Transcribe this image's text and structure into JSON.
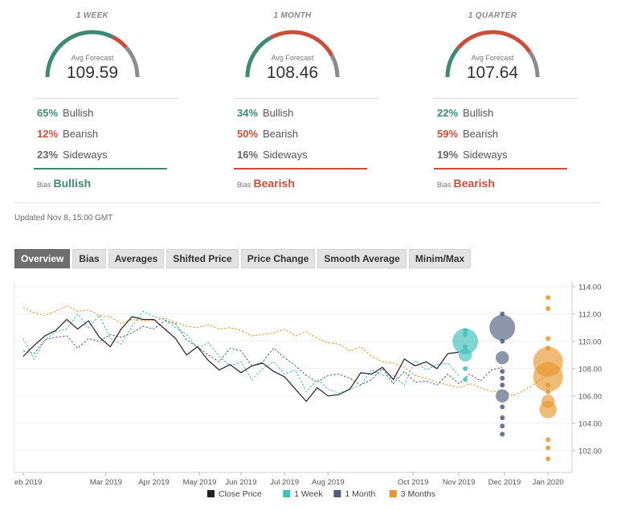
{
  "forecasts": [
    {
      "period": "1 WEEK",
      "avg_label": "Avg Forecast",
      "avg_value": "109.59",
      "bullish_pct": "65%",
      "bearish_pct": "12%",
      "sideways_pct": "23%",
      "bullish": 65,
      "bearish": 12,
      "sideways": 23,
      "bullish_label": "Bullish",
      "bearish_label": "Bearish",
      "sideways_label": "Sideways",
      "bias_label": "Bias",
      "bias": "Bullish",
      "bias_color": "#3c8a72"
    },
    {
      "period": "1 MONTH",
      "avg_label": "Avg Forecast",
      "avg_value": "108.46",
      "bullish_pct": "34%",
      "bearish_pct": "50%",
      "sideways_pct": "16%",
      "bullish": 34,
      "bearish": 50,
      "sideways": 16,
      "bullish_label": "Bullish",
      "bearish_label": "Bearish",
      "sideways_label": "Sideways",
      "bias_label": "Bias",
      "bias": "Bearish",
      "bias_color": "#c7503d"
    },
    {
      "period": "1 QUARTER",
      "avg_label": "Avg Forecast",
      "avg_value": "107.64",
      "bullish_pct": "22%",
      "bearish_pct": "59%",
      "sideways_pct": "19%",
      "bullish": 22,
      "bearish": 59,
      "sideways": 19,
      "bullish_label": "Bullish",
      "bearish_label": "Bearish",
      "sideways_label": "Sideways",
      "bias_label": "Bias",
      "bias": "Bearish",
      "bias_color": "#c7503d"
    }
  ],
  "colors": {
    "bullish": "#3c8a72",
    "bearish": "#c7503d",
    "sideways": "#8c8c8c"
  },
  "updated": "Updated Nov 8, 15:00 GMT",
  "tabs": [
    "Overview",
    "Bias",
    "Averages",
    "Shifted Price",
    "Price Change",
    "Smooth Average",
    "Minim/Max"
  ],
  "active_tab": "Overview",
  "chart_data": {
    "type": "line",
    "x_ticks": [
      "eb 2019",
      "Mar 2019",
      "Apr 2019",
      "May 2019",
      "Jun 2019",
      "Jul 2019",
      "Aug 2019",
      "Oct 2019",
      "Nov 2019",
      "Dec 2019",
      "Jan 2020"
    ],
    "x_tick_months": [
      1,
      2.9,
      4,
      5.05,
      6,
      7,
      8,
      9.95,
      11,
      12.05,
      13.05
    ],
    "y_ticks": [
      "102.00",
      "104.00",
      "106.00",
      "108.00",
      "110.00",
      "112.00",
      "114.00"
    ],
    "ylim": [
      100.4,
      114.4
    ],
    "legend": [
      "Close Price",
      "1 Week",
      "1 Month",
      "3 Months"
    ],
    "legend_colors": [
      "#222222",
      "#3fbfb8",
      "#4d5d7c",
      "#e8962e"
    ],
    "series": [
      {
        "name": "Close Price",
        "color": "#222222",
        "style": "solid",
        "x": [
          1.0,
          1.25,
          1.5,
          1.75,
          2.0,
          2.25,
          2.5,
          2.75,
          3.0,
          3.25,
          3.5,
          3.75,
          4.0,
          4.25,
          4.5,
          4.75,
          5.0,
          5.25,
          5.5,
          5.75,
          6.0,
          6.25,
          6.5,
          6.75,
          7.0,
          7.25,
          7.5,
          7.75,
          8.0,
          8.25,
          8.5,
          8.75,
          9.0,
          9.25,
          9.5,
          9.75,
          10.0,
          10.25,
          10.5,
          10.75,
          11.0
        ],
        "y": [
          108.9,
          109.7,
          110.4,
          110.8,
          111.6,
          110.9,
          111.5,
          110.3,
          109.6,
          110.9,
          111.8,
          111.6,
          111.6,
          110.9,
          110.2,
          109.0,
          109.6,
          108.6,
          107.9,
          108.3,
          107.7,
          108.2,
          108.4,
          107.8,
          107.4,
          106.5,
          105.6,
          106.6,
          106.0,
          106.1,
          106.5,
          107.7,
          107.6,
          108.1,
          107.2,
          108.7,
          108.2,
          108.5,
          108.0,
          109.1,
          109.2
        ]
      },
      {
        "name": "1 Week",
        "color": "#3fbfb8",
        "style": "dashed",
        "x": [
          1.0,
          1.25,
          1.5,
          1.75,
          2.0,
          2.25,
          2.5,
          2.75,
          3.0,
          3.25,
          3.5,
          3.75,
          4.0,
          4.25,
          4.5,
          4.75,
          5.0,
          5.25,
          5.5,
          5.75,
          6.0,
          6.25,
          6.5,
          6.75,
          7.0,
          7.25,
          7.5,
          7.75,
          8.0,
          8.25,
          8.5,
          8.75,
          9.0,
          9.25,
          9.5,
          9.75,
          10.0,
          10.25,
          10.5,
          10.75,
          11.0
        ],
        "y": [
          110.2,
          108.7,
          110.1,
          110.7,
          110.9,
          112.0,
          111.0,
          111.9,
          110.2,
          109.8,
          111.1,
          112.2,
          111.8,
          111.6,
          111.0,
          110.5,
          109.5,
          109.9,
          108.9,
          108.2,
          108.5,
          107.2,
          108.0,
          108.5,
          107.6,
          107.9,
          106.3,
          107.2,
          106.5,
          106.2,
          106.5,
          106.8,
          107.9,
          107.5,
          107.5,
          106.8,
          108.6,
          107.9,
          108.3,
          108.4,
          107.5
        ]
      },
      {
        "name": "1 Month",
        "color": "#4d5d7c",
        "style": "dashed",
        "x": [
          1.0,
          1.25,
          1.5,
          1.75,
          2.0,
          2.25,
          2.5,
          2.75,
          3.0,
          3.25,
          3.5,
          3.75,
          4.0,
          4.25,
          4.5,
          4.75,
          5.0,
          5.25,
          5.5,
          5.75,
          6.0,
          6.25,
          6.5,
          6.75,
          7.0,
          7.25,
          7.5,
          7.75,
          8.0,
          8.25,
          8.5,
          8.75,
          9.0,
          9.25,
          9.5,
          9.75,
          10.0,
          10.25,
          10.5,
          10.75,
          11.0,
          11.25,
          11.5,
          11.75,
          12.0
        ],
        "y": [
          109.3,
          109.1,
          110.1,
          110.3,
          110.4,
          109.5,
          110.2,
          110.0,
          110.5,
          110.3,
          110.6,
          111.1,
          110.9,
          111.5,
          111.3,
          110.1,
          109.6,
          109.0,
          108.5,
          109.5,
          109.3,
          108.2,
          108.5,
          109.5,
          108.8,
          108.2,
          107.5,
          107.0,
          107.5,
          107.6,
          107.3,
          106.8,
          107.2,
          108.0,
          106.9,
          107.8,
          107.0,
          107.1,
          106.8,
          107.6,
          106.9,
          107.6,
          107.1,
          107.9,
          108.1
        ]
      },
      {
        "name": "3 Months",
        "color": "#e8962e",
        "style": "dashed",
        "x": [
          1.0,
          1.25,
          1.5,
          1.75,
          2.0,
          2.25,
          2.5,
          2.75,
          3.0,
          3.25,
          3.5,
          3.75,
          4.0,
          4.25,
          4.5,
          4.75,
          5.0,
          5.25,
          5.5,
          5.75,
          6.0,
          6.25,
          6.5,
          6.75,
          7.0,
          7.25,
          7.5,
          7.75,
          8.0,
          8.25,
          8.5,
          8.75,
          9.0,
          9.25,
          9.5,
          9.75,
          10.0,
          10.25,
          10.5,
          10.75,
          11.0,
          11.25,
          11.5,
          11.75,
          12.0,
          12.25,
          12.5,
          12.75,
          13.0,
          13.25
        ],
        "y": [
          112.5,
          112.1,
          111.9,
          112.2,
          112.6,
          112.2,
          112.3,
          111.9,
          111.8,
          111.3,
          111.6,
          111.5,
          111.5,
          111.7,
          111.4,
          111.1,
          111.0,
          111.2,
          110.9,
          111.0,
          110.8,
          110.4,
          110.5,
          110.6,
          110.9,
          110.4,
          110.7,
          110.2,
          109.9,
          109.8,
          109.3,
          109.6,
          108.9,
          108.5,
          108.4,
          108.1,
          107.5,
          107.3,
          107.0,
          106.8,
          106.6,
          106.9,
          106.6,
          106.3,
          106.4,
          106.0,
          106.4,
          106.9,
          107.5,
          108.1
        ]
      }
    ],
    "bubbles": [
      {
        "group": "1 Week",
        "color": "#3fbfb8",
        "x": 11.15,
        "points": [
          [
            110.8,
            1
          ],
          [
            110.5,
            1
          ],
          [
            110.0,
            5
          ],
          [
            109.6,
            1
          ],
          [
            109.0,
            2
          ],
          [
            108.0,
            1
          ],
          [
            107.2,
            1
          ]
        ]
      },
      {
        "group": "1 Month",
        "color": "#4d5d7c",
        "x": 12.0,
        "points": [
          [
            112.0,
            1
          ],
          [
            111.0,
            5
          ],
          [
            110.0,
            1
          ],
          [
            108.8,
            2
          ],
          [
            107.8,
            1
          ],
          [
            107.3,
            1
          ],
          [
            106.8,
            1
          ],
          [
            106.0,
            2
          ],
          [
            105.2,
            1
          ],
          [
            104.4,
            1
          ],
          [
            103.8,
            1
          ],
          [
            103.2,
            1
          ]
        ]
      },
      {
        "group": "3 Months",
        "color": "#e8962e",
        "x": 13.05,
        "points": [
          [
            113.2,
            1
          ],
          [
            112.4,
            1
          ],
          [
            110.2,
            1
          ],
          [
            109.5,
            1
          ],
          [
            108.5,
            6
          ],
          [
            107.4,
            6
          ],
          [
            106.8,
            1
          ],
          [
            106.3,
            1
          ],
          [
            105.6,
            2
          ],
          [
            105.0,
            3
          ],
          [
            102.8,
            1
          ],
          [
            102.2,
            1
          ],
          [
            101.4,
            1
          ]
        ]
      }
    ]
  }
}
